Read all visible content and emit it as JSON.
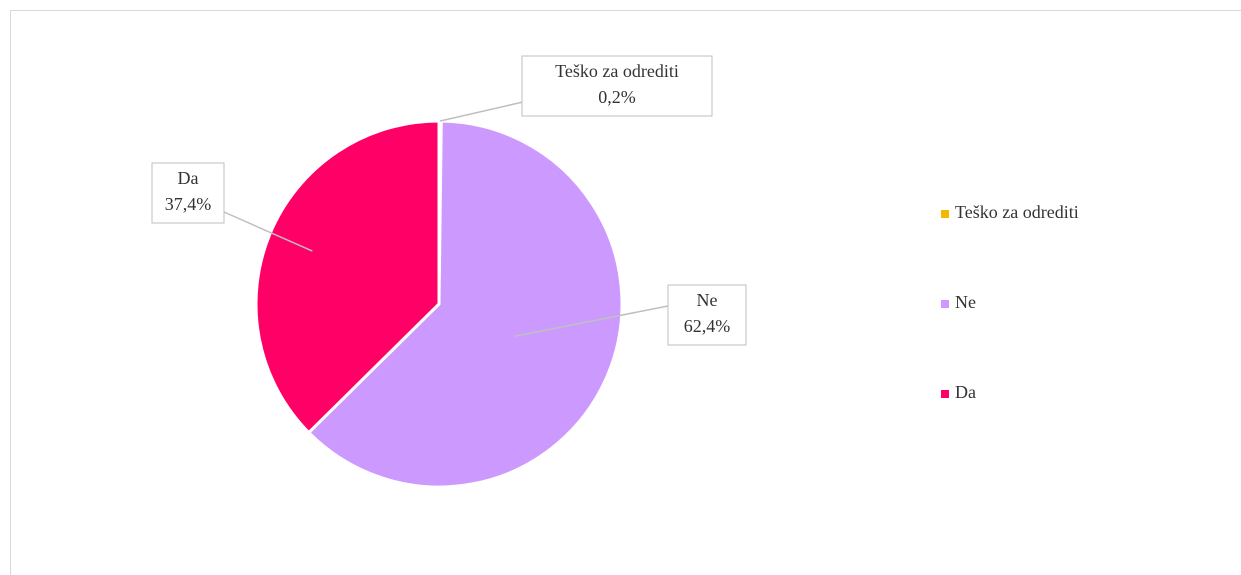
{
  "chart_data": {
    "type": "pie",
    "categories": [
      "Teško za odrediti",
      "Ne",
      "Da"
    ],
    "values": [
      0.2,
      62.4,
      37.4
    ],
    "value_labels": [
      "0,2%",
      "62,4%",
      "37,4%"
    ],
    "colors": [
      "#f5b800",
      "#cc99ff",
      "#ff0066"
    ],
    "legend": "right"
  }
}
